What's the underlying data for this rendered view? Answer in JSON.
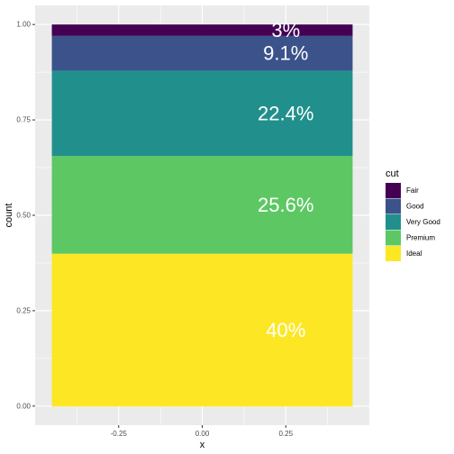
{
  "chart_data": {
    "type": "bar",
    "stacked": true,
    "xlabel": "x",
    "ylabel": "count",
    "xlim": [
      -0.5,
      0.5
    ],
    "ylim": [
      0,
      1
    ],
    "x_ticks": [
      "-0.25",
      "0.00",
      "0.25"
    ],
    "x_tick_values": [
      -0.25,
      0,
      0.25
    ],
    "y_ticks": [
      "0.00",
      "0.25",
      "0.50",
      "0.75",
      "1.00"
    ],
    "y_tick_values": [
      0,
      0.25,
      0.5,
      0.75,
      1.0
    ],
    "bar_x_range": [
      -0.45,
      0.45
    ],
    "label_x": 0.25,
    "grid": true,
    "legend": {
      "title": "cut",
      "position": "right"
    },
    "series": [
      {
        "name": "Fair",
        "value": 0.03,
        "label": "3%",
        "color": "#440154"
      },
      {
        "name": "Good",
        "value": 0.091,
        "label": "9.1%",
        "color": "#3B528B"
      },
      {
        "name": "Very Good",
        "value": 0.224,
        "label": "22.4%",
        "color": "#21908C"
      },
      {
        "name": "Premium",
        "value": 0.256,
        "label": "25.6%",
        "color": "#5DC863"
      },
      {
        "name": "Ideal",
        "value": 0.4,
        "label": "40%",
        "color": "#FDE725"
      }
    ]
  }
}
